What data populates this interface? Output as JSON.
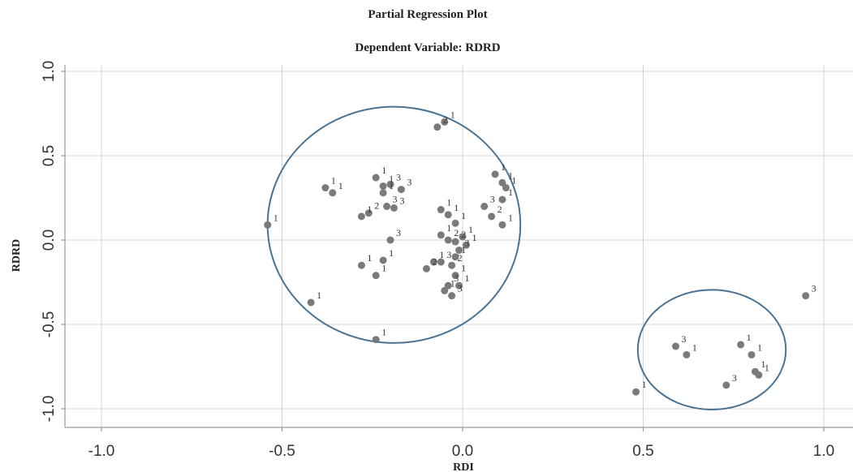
{
  "chart_data": {
    "type": "scatter",
    "title": "Partial Regression Plot",
    "subtitle": "Dependent Variable: RDRD",
    "xlabel": "RDI",
    "ylabel": "RDRD",
    "xlim": [
      -1.1,
      1.05
    ],
    "ylim": [
      -1.08,
      1.05
    ],
    "xticks": [
      -1.0,
      -0.5,
      0.0,
      0.5,
      1.0
    ],
    "yticks": [
      -1.0,
      -0.5,
      0.0,
      0.5,
      1.0
    ],
    "xtick_labels": [
      "-1.0",
      "-0.5",
      "0.0",
      "0.5",
      "1.0"
    ],
    "ytick_labels": [
      "-1.0",
      "-0.5",
      "0.0",
      "0.5",
      "1.0"
    ],
    "grid": true,
    "marker_color": "#7a7a7a",
    "ring_color": "#4a7393",
    "points": [
      {
        "x": -0.54,
        "y": 0.09,
        "label": "1"
      },
      {
        "x": -0.42,
        "y": -0.37,
        "label": "1"
      },
      {
        "x": -0.38,
        "y": 0.31,
        "label": "1"
      },
      {
        "x": -0.36,
        "y": 0.28,
        "label": "1"
      },
      {
        "x": -0.28,
        "y": 0.14,
        "label": "1"
      },
      {
        "x": -0.26,
        "y": 0.16,
        "label": "2"
      },
      {
        "x": -0.24,
        "y": 0.37,
        "label": "1"
      },
      {
        "x": -0.22,
        "y": 0.32,
        "label": "1"
      },
      {
        "x": -0.2,
        "y": 0.33,
        "label": "3"
      },
      {
        "x": -0.22,
        "y": 0.28,
        "label": "1"
      },
      {
        "x": -0.17,
        "y": 0.3,
        "label": "3"
      },
      {
        "x": -0.21,
        "y": 0.2,
        "label": "3"
      },
      {
        "x": -0.19,
        "y": 0.19,
        "label": "3"
      },
      {
        "x": -0.22,
        "y": -0.12,
        "label": "1"
      },
      {
        "x": -0.2,
        "y": 0.0,
        "label": "3"
      },
      {
        "x": -0.28,
        "y": -0.15,
        "label": "1"
      },
      {
        "x": -0.24,
        "y": -0.21,
        "label": "1"
      },
      {
        "x": -0.24,
        "y": -0.59,
        "label": "1"
      },
      {
        "x": -0.07,
        "y": 0.67,
        "label": "2"
      },
      {
        "x": -0.05,
        "y": 0.7,
        "label": "1"
      },
      {
        "x": -0.06,
        "y": 0.18,
        "label": "1"
      },
      {
        "x": -0.04,
        "y": 0.15,
        "label": "1"
      },
      {
        "x": -0.02,
        "y": 0.1,
        "label": "1"
      },
      {
        "x": -0.06,
        "y": 0.03,
        "label": "1"
      },
      {
        "x": -0.04,
        "y": 0.0,
        "label": "2"
      },
      {
        "x": -0.02,
        "y": -0.01,
        "label": "2"
      },
      {
        "x": 0.0,
        "y": 0.02,
        "label": "1"
      },
      {
        "x": 0.01,
        "y": -0.03,
        "label": "1"
      },
      {
        "x": -0.1,
        "y": -0.17,
        "label": "2"
      },
      {
        "x": -0.08,
        "y": -0.13,
        "label": "1"
      },
      {
        "x": -0.06,
        "y": -0.13,
        "label": "3"
      },
      {
        "x": -0.03,
        "y": -0.15,
        "label": "2"
      },
      {
        "x": -0.02,
        "y": -0.1,
        "label": "1"
      },
      {
        "x": -0.01,
        "y": -0.06,
        "label": "3"
      },
      {
        "x": -0.02,
        "y": -0.21,
        "label": "1"
      },
      {
        "x": -0.04,
        "y": -0.27,
        "label": "3"
      },
      {
        "x": -0.05,
        "y": -0.3,
        "label": "1"
      },
      {
        "x": -0.03,
        "y": -0.33,
        "label": "3"
      },
      {
        "x": -0.01,
        "y": -0.27,
        "label": "1"
      },
      {
        "x": 0.06,
        "y": 0.2,
        "label": "3"
      },
      {
        "x": 0.08,
        "y": 0.14,
        "label": "2"
      },
      {
        "x": 0.09,
        "y": 0.39,
        "label": "1"
      },
      {
        "x": 0.11,
        "y": 0.34,
        "label": "1"
      },
      {
        "x": 0.12,
        "y": 0.31,
        "label": "1"
      },
      {
        "x": 0.11,
        "y": 0.24,
        "label": "1"
      },
      {
        "x": 0.11,
        "y": 0.09,
        "label": "1"
      },
      {
        "x": 0.48,
        "y": -0.9,
        "label": "1"
      },
      {
        "x": 0.59,
        "y": -0.63,
        "label": "3"
      },
      {
        "x": 0.62,
        "y": -0.68,
        "label": "1"
      },
      {
        "x": 0.73,
        "y": -0.86,
        "label": "3"
      },
      {
        "x": 0.77,
        "y": -0.62,
        "label": "1"
      },
      {
        "x": 0.8,
        "y": -0.68,
        "label": "1"
      },
      {
        "x": 0.81,
        "y": -0.78,
        "label": "1"
      },
      {
        "x": 0.82,
        "y": -0.8,
        "label": "1"
      },
      {
        "x": 0.95,
        "y": -0.33,
        "label": "3"
      }
    ],
    "annotations": [
      {
        "shape": "ellipse",
        "cx": -0.19,
        "cy": 0.09,
        "rx": 0.35,
        "ry": 0.7
      },
      {
        "shape": "ellipse",
        "cx": 0.69,
        "cy": -0.65,
        "rx": 0.205,
        "ry": 0.355
      }
    ]
  }
}
